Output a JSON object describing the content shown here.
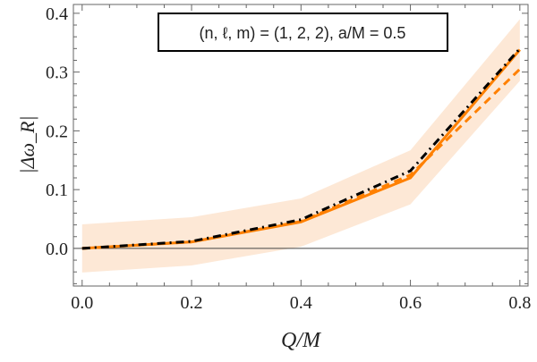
{
  "chart_data": {
    "type": "line",
    "title": "",
    "annotation": "(n, ℓ, m) = (1, 2, 2),  a/M = 0.5",
    "xlabel": "Q/M",
    "ylabel": "|Δω_R|",
    "xlim": [
      -0.016,
      0.815
    ],
    "ylim": [
      -0.064,
      0.415
    ],
    "xticks": [
      "0.0",
      "0.2",
      "0.4",
      "0.6",
      "0.8"
    ],
    "yticks": [
      "0.0",
      "0.1",
      "0.2",
      "0.3",
      "0.4"
    ],
    "grid": false,
    "x": [
      0,
      0.2,
      0.4,
      0.6,
      0.8
    ],
    "band": {
      "color": "#fde8d6",
      "lower": [
        -0.041,
        -0.029,
        0.003,
        0.075,
        0.285
      ],
      "upper": [
        0.041,
        0.053,
        0.085,
        0.167,
        0.39
      ]
    },
    "series": [
      {
        "style": "solid",
        "color": "#ff8000",
        "values": [
          0,
          0.011,
          0.045,
          0.12,
          0.338
        ]
      },
      {
        "style": "dashed",
        "color": "#ff8000",
        "values": [
          0,
          0.011,
          0.046,
          0.125,
          0.305
        ]
      },
      {
        "style": "dashdot",
        "color": "#000000",
        "values": [
          0,
          0.012,
          0.049,
          0.132,
          0.34
        ]
      }
    ],
    "zero_line": true
  }
}
